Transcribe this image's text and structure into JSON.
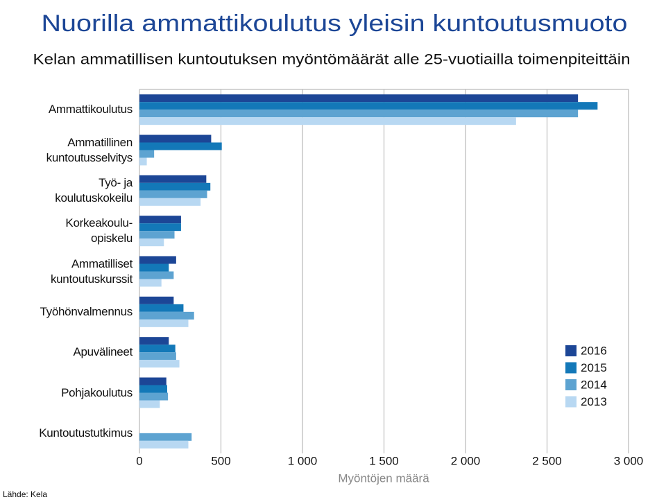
{
  "chart_data": {
    "type": "hbar",
    "title": "Nuorilla ammattikoulutus yleisin kuntoutusmuoto",
    "subtitle": "Kelan ammatillisen kuntoutuksen myöntömäärät alle 25-vuotiailla toimenpiteittäin",
    "x_label": "Myöntöjen määrä",
    "source": "Lähde: Kela",
    "categories": [
      "Ammattikoulutus",
      "Ammatillinen\nkuntoutusselvitys",
      "Työ- ja\nkoulutuskokeilu",
      "Korkeakoulu-\nopiskelu",
      "Ammatilliset\nkuntoutuskurssit",
      "Työhönvalmennus",
      "Apuvälineet",
      "Pohjakoulutus",
      "Kuntoutustutkimus"
    ],
    "series": [
      {
        "name": "2016",
        "color": "#1c4696",
        "values": [
          2690,
          440,
          410,
          255,
          225,
          210,
          180,
          165,
          null
        ]
      },
      {
        "name": "2015",
        "color": "#1378b8",
        "values": [
          2810,
          505,
          435,
          255,
          180,
          270,
          220,
          170,
          null
        ]
      },
      {
        "name": "2014",
        "color": "#5da3d1",
        "values": [
          2690,
          90,
          415,
          215,
          210,
          335,
          225,
          175,
          320
        ]
      },
      {
        "name": "2013",
        "color": "#b8d8f2",
        "values": [
          2310,
          45,
          375,
          150,
          135,
          300,
          245,
          125,
          300
        ]
      }
    ],
    "xlim": [
      0,
      3000
    ],
    "xticks": [
      0,
      500,
      {
        "value": 1000,
        "label": "1 000"
      },
      {
        "value": 1500,
        "label": "1 500"
      },
      {
        "value": 2000,
        "label": "2 000"
      },
      {
        "value": 2500,
        "label": "2 500"
      },
      {
        "value": 3000,
        "label": "3 000"
      }
    ],
    "grid": true,
    "legend": "lower-right"
  }
}
